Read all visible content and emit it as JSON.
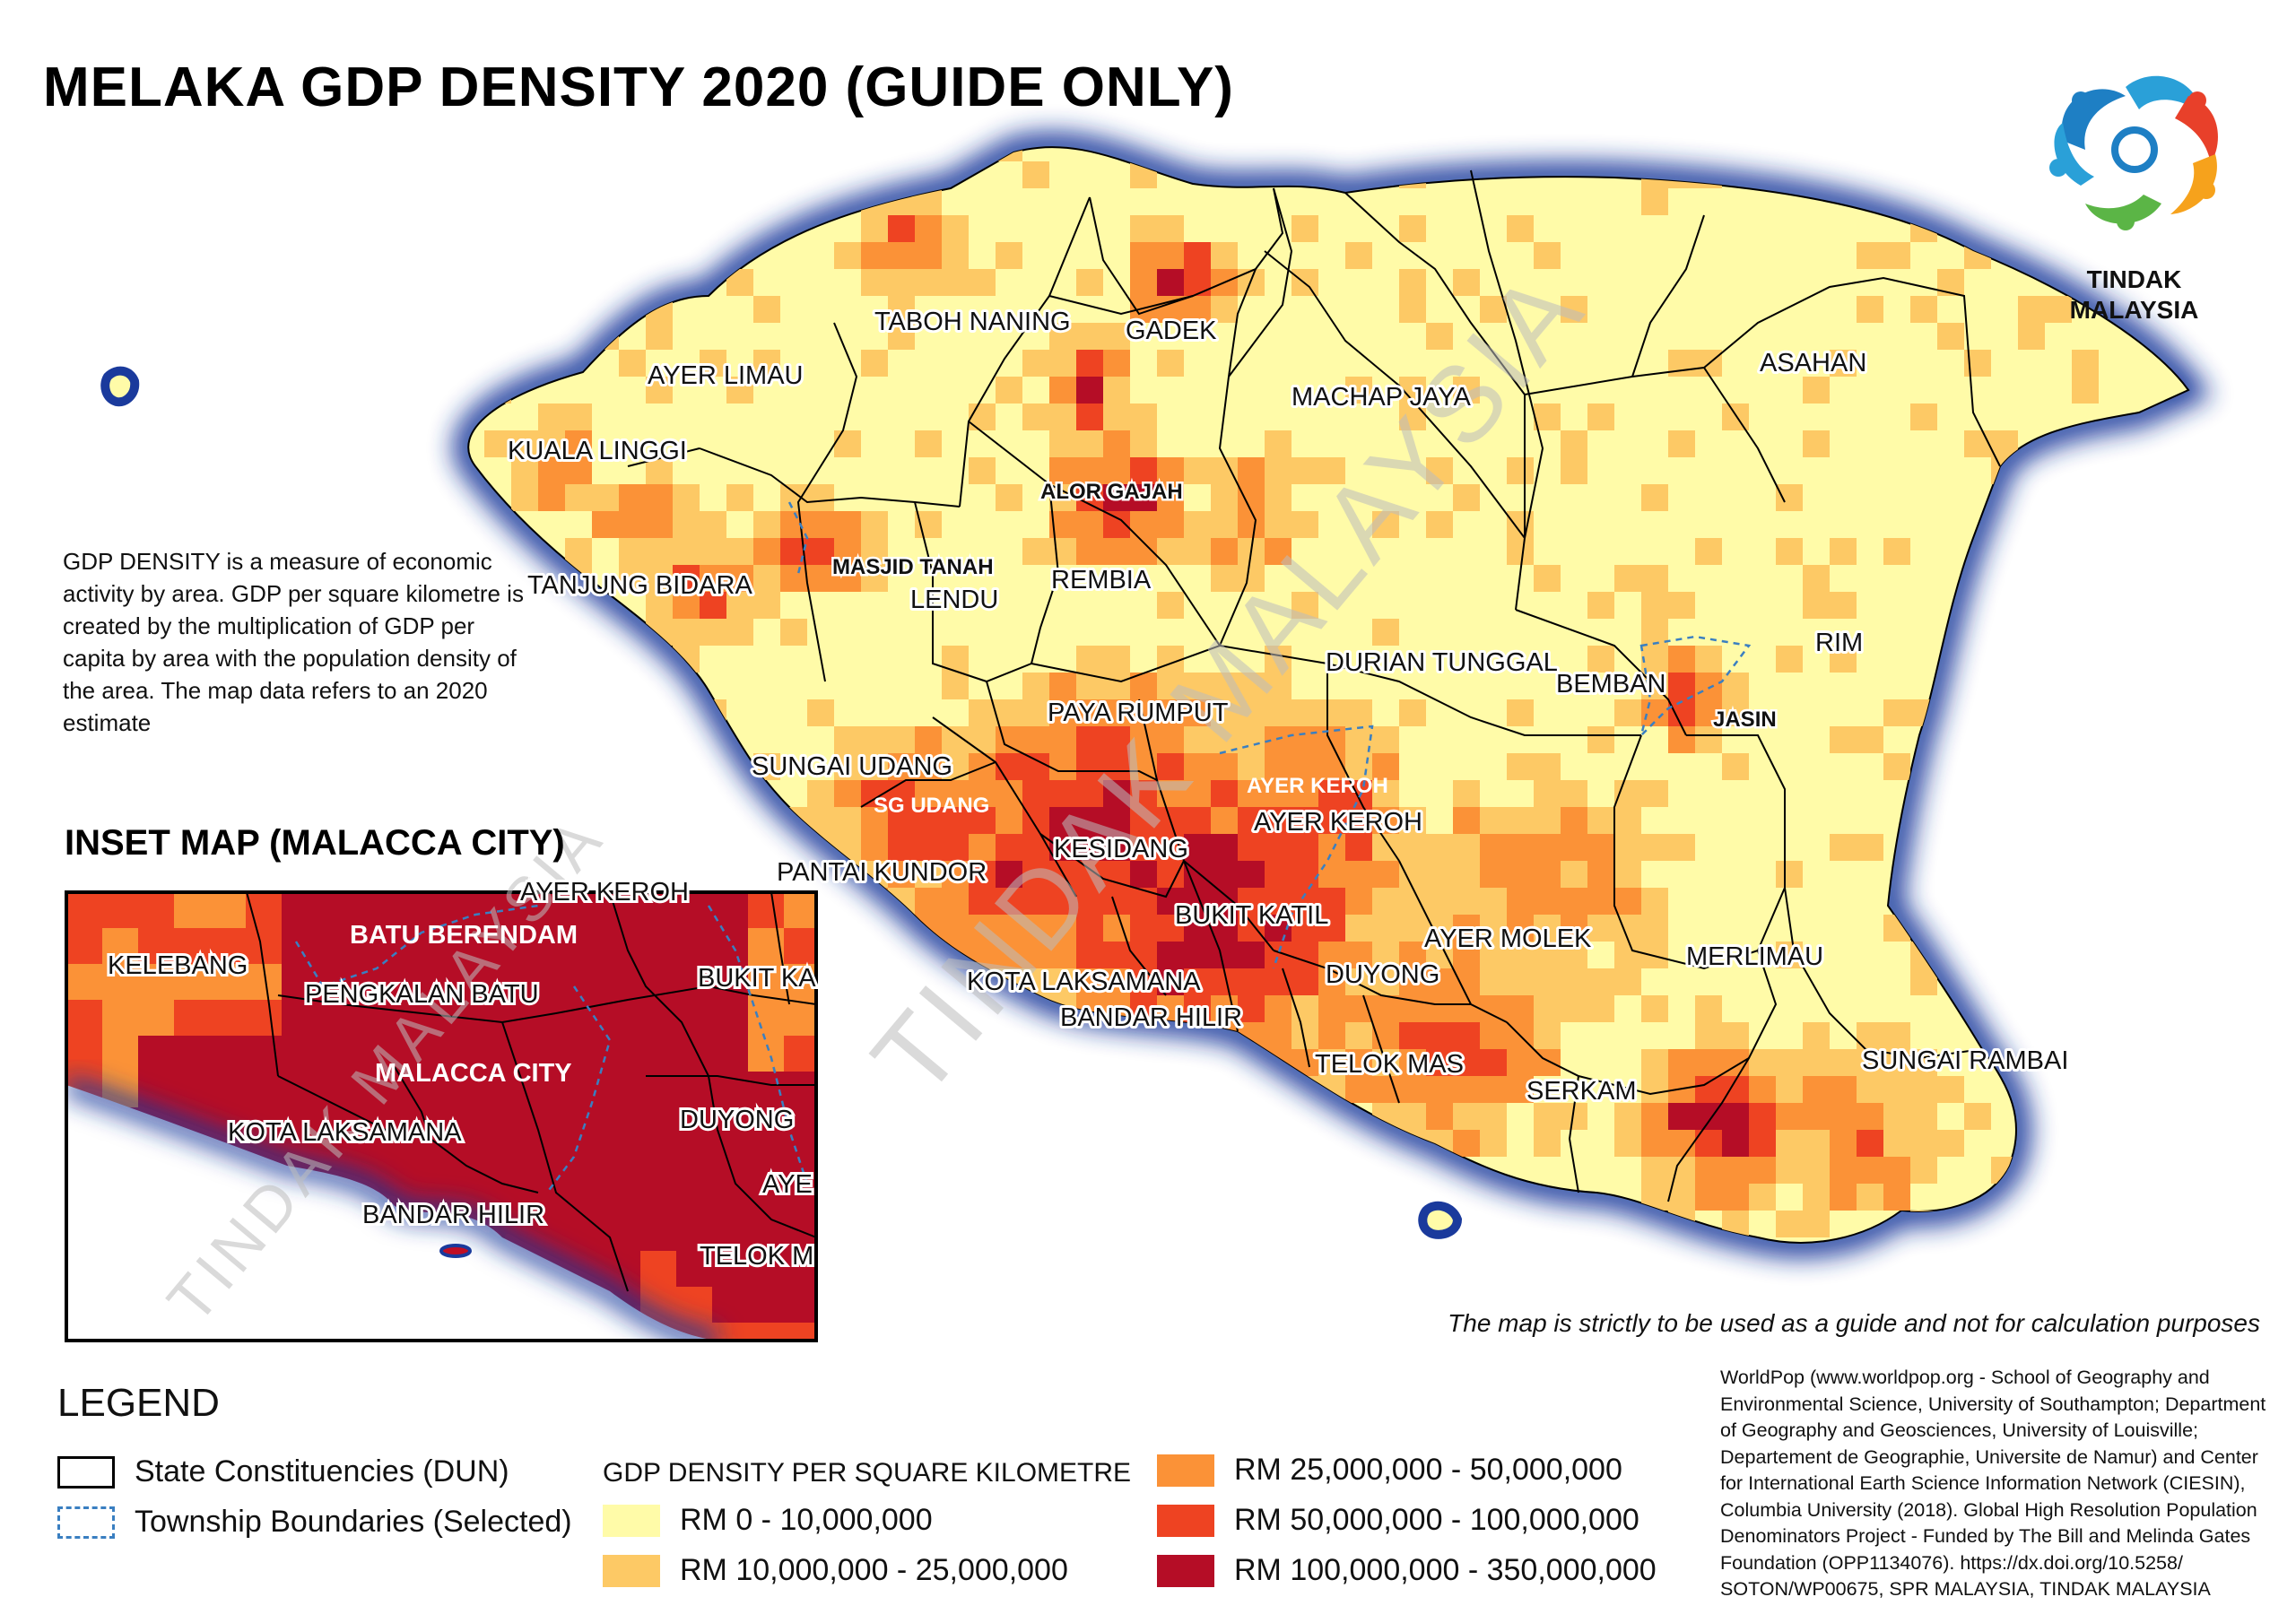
{
  "title": "MELAKA GDP DENSITY 2020 (GUIDE ONLY)",
  "logo": {
    "icon": "tindak-malaysia-logo-icon",
    "text_line1": "TINDAK",
    "text_line2": "MALAYSIA"
  },
  "description": "GDP DENSITY is a measure of economic activity by area. GDP per square kilometre is created by the multiplication of GDP per capita by area with the population density of the area. The map data refers to an 2020 estimate",
  "watermark": "TINDAK MALAYSIA",
  "inset_watermark": "TINDAK MALAYSIA",
  "inset_title": "INSET MAP (MALACCA CITY)",
  "disclaimer": "The map is strictly to be used as a guide and not for calculation purposes",
  "colors": {
    "class1": "#FFFBA8",
    "class2": "#FDC965",
    "class3": "#FB9237",
    "class4": "#EE4322",
    "class5": "#B50D26",
    "sea_glow": "#1A3A9C",
    "township_boundary": "#3A7FC1"
  },
  "map_labels": [
    {
      "text": "TABOH NANING",
      "style": "normal"
    },
    {
      "text": "GADEK",
      "style": "normal"
    },
    {
      "text": "AYER LIMAU",
      "style": "normal"
    },
    {
      "text": "MACHAP JAYA",
      "style": "normal"
    },
    {
      "text": "ASAHAN",
      "style": "normal"
    },
    {
      "text": "KUALA LINGGI",
      "style": "normal"
    },
    {
      "text": "ALOR GAJAH",
      "style": "bold"
    },
    {
      "text": "MASJID TANAH",
      "style": "bold"
    },
    {
      "text": "TANJUNG BIDARA",
      "style": "normal"
    },
    {
      "text": "LENDU",
      "style": "normal"
    },
    {
      "text": "REMBIA",
      "style": "normal"
    },
    {
      "text": "DURIAN TUNGGAL",
      "style": "normal"
    },
    {
      "text": "BEMBAN",
      "style": "normal"
    },
    {
      "text": "RIM",
      "style": "normal"
    },
    {
      "text": "JASIN",
      "style": "bold"
    },
    {
      "text": "PAYA RUMPUT",
      "style": "normal"
    },
    {
      "text": "SUNGAI UDANG",
      "style": "normal"
    },
    {
      "text": "SG UDANG",
      "style": "white"
    },
    {
      "text": "AYER KEROH",
      "style": "white"
    },
    {
      "text": "AYER KEROH",
      "style": "normal"
    },
    {
      "text": "KESIDANG",
      "style": "normal"
    },
    {
      "text": "PANTAI KUNDOR",
      "style": "normal"
    },
    {
      "text": "BUKIT KATIL",
      "style": "normal"
    },
    {
      "text": "AYER MOLEK",
      "style": "normal"
    },
    {
      "text": "KOTA LAKSAMANA",
      "style": "normal"
    },
    {
      "text": "DUYONG",
      "style": "normal"
    },
    {
      "text": "MERLIMAU",
      "style": "normal"
    },
    {
      "text": "BANDAR HILIR",
      "style": "normal"
    },
    {
      "text": "TELOK MAS",
      "style": "normal"
    },
    {
      "text": "SERKAM",
      "style": "normal"
    },
    {
      "text": "SUNGAI RAMBAI",
      "style": "normal"
    }
  ],
  "inset_labels": [
    {
      "text": "AYER KEROH",
      "style": "normal"
    },
    {
      "text": "BATU BERENDAM",
      "style": "white"
    },
    {
      "text": "KELEBANG",
      "style": "normal"
    },
    {
      "text": "PENGKALAN BATU",
      "style": "normal"
    },
    {
      "text": "BUKIT KA",
      "style": "normal"
    },
    {
      "text": "MALACCA CITY",
      "style": "white"
    },
    {
      "text": "DUYONG",
      "style": "normal"
    },
    {
      "text": "KOTA LAKSAMANA",
      "style": "normal"
    },
    {
      "text": "AYE",
      "style": "normal"
    },
    {
      "text": "BANDAR HILIR",
      "style": "normal"
    },
    {
      "text": "TELOK M",
      "style": "normal"
    }
  ],
  "legend": {
    "title": "LEGEND",
    "state_constituencies": "State Constituencies (DUN)",
    "township_boundaries": "Township Boundaries (Selected)",
    "density_heading": "GDP DENSITY PER SQUARE KILOMETRE",
    "classes": [
      "RM 0 - 10,000,000",
      "RM 10,000,000 - 25,000,000",
      "RM 25,000,000 - 50,000,000",
      "RM 50,000,000 - 100,000,000",
      "RM 100,000,000 - 350,000,000"
    ]
  },
  "credits": "WorldPop (www.worldpop.org - School of Geography and Environmental Science, University of Southampton; Department of Geography and Geosciences, University of Louisville; Departement de Geographie, Universite de Namur) and Center for International Earth Science Information Network (CIESIN), Columbia University (2018). Global High Resolution Population Denominators Project - Funded by The Bill and Melinda Gates Foundation (OPP1134076). https://dx.doi.org/10.5258/ SOTON/WP00675, SPR MALAYSIA, TINDAK MALAYSIA"
}
